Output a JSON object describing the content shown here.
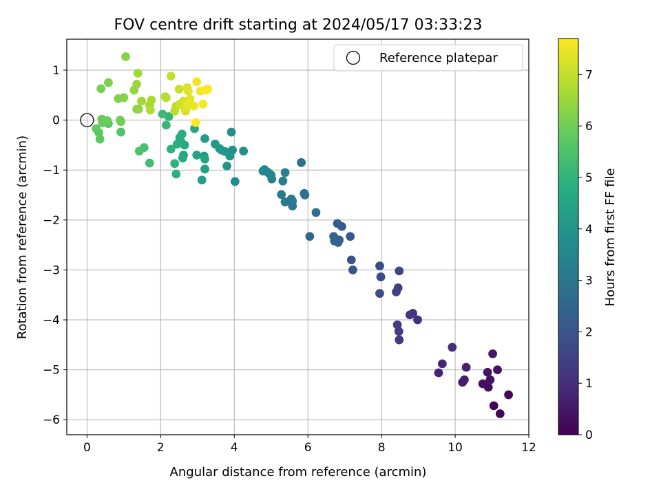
{
  "chart_data": {
    "type": "scatter",
    "title": "FOV centre drift starting at 2024/05/17 03:33:23",
    "xlabel": "Angular distance from reference (arcmin)",
    "ylabel": "Rotation from reference (arcmin)",
    "xlim": [
      -0.55,
      12.0
    ],
    "ylim": [
      -6.3,
      1.62
    ],
    "xticks": [
      0,
      2,
      4,
      6,
      8,
      10,
      12
    ],
    "yticks": [
      1,
      0,
      -1,
      -2,
      -3,
      -4,
      -5,
      -6
    ],
    "xtick_labels": [
      "0",
      "2",
      "4",
      "6",
      "8",
      "10",
      "12"
    ],
    "ytick_labels": [
      "1",
      "0",
      "−1",
      "−2",
      "−3",
      "−4",
      "−5",
      "−6"
    ],
    "grid": true,
    "legend": {
      "placement": "top-right",
      "label": "Reference platepar"
    },
    "reference_point": {
      "x": 0,
      "y": 0
    },
    "colorbar": {
      "label": "Hours from first FF file",
      "range": [
        0,
        7.7
      ],
      "ticks": [
        0,
        1,
        2,
        3,
        4,
        5,
        6,
        7
      ],
      "tick_labels": [
        "0",
        "1",
        "2",
        "3",
        "4",
        "5",
        "6",
        "7"
      ],
      "colormap": "viridis"
    },
    "points": [
      {
        "x": 11.05,
        "y": -5.72,
        "h": 0.05
      },
      {
        "x": 11.22,
        "y": -5.88,
        "h": 0.1
      },
      {
        "x": 11.45,
        "y": -5.5,
        "h": 0.15
      },
      {
        "x": 10.85,
        "y": -5.3,
        "h": 0.2
      },
      {
        "x": 10.9,
        "y": -5.35,
        "h": 0.25
      },
      {
        "x": 10.75,
        "y": -5.28,
        "h": 0.3
      },
      {
        "x": 10.95,
        "y": -5.2,
        "h": 0.35
      },
      {
        "x": 11.15,
        "y": -5.0,
        "h": 0.4
      },
      {
        "x": 10.88,
        "y": -5.05,
        "h": 0.45
      },
      {
        "x": 11.02,
        "y": -4.68,
        "h": 0.5
      },
      {
        "x": 10.2,
        "y": -5.25,
        "h": 0.55
      },
      {
        "x": 10.25,
        "y": -5.2,
        "h": 0.6
      },
      {
        "x": 10.3,
        "y": -4.95,
        "h": 0.65
      },
      {
        "x": 9.55,
        "y": -5.06,
        "h": 0.75
      },
      {
        "x": 9.65,
        "y": -4.88,
        "h": 0.85
      },
      {
        "x": 9.92,
        "y": -4.55,
        "h": 0.95
      },
      {
        "x": 8.98,
        "y": -4.0,
        "h": 1.1
      },
      {
        "x": 8.85,
        "y": -3.87,
        "h": 1.15
      },
      {
        "x": 8.77,
        "y": -3.9,
        "h": 1.2
      },
      {
        "x": 8.48,
        "y": -4.4,
        "h": 1.25
      },
      {
        "x": 8.47,
        "y": -4.23,
        "h": 1.3
      },
      {
        "x": 8.43,
        "y": -4.1,
        "h": 1.35
      },
      {
        "x": 8.45,
        "y": -3.36,
        "h": 1.45
      },
      {
        "x": 8.4,
        "y": -3.44,
        "h": 1.5
      },
      {
        "x": 8.48,
        "y": -3.02,
        "h": 1.6
      },
      {
        "x": 7.98,
        "y": -3.14,
        "h": 1.7
      },
      {
        "x": 7.95,
        "y": -2.92,
        "h": 1.75
      },
      {
        "x": 7.95,
        "y": -3.47,
        "h": 1.8
      },
      {
        "x": 7.22,
        "y": -3.0,
        "h": 1.95
      },
      {
        "x": 7.18,
        "y": -2.8,
        "h": 2.0
      },
      {
        "x": 7.15,
        "y": -2.33,
        "h": 2.1
      },
      {
        "x": 6.92,
        "y": -2.13,
        "h": 2.2
      },
      {
        "x": 6.8,
        "y": -2.07,
        "h": 2.25
      },
      {
        "x": 6.85,
        "y": -2.4,
        "h": 2.3
      },
      {
        "x": 6.75,
        "y": -2.38,
        "h": 2.35
      },
      {
        "x": 6.82,
        "y": -2.45,
        "h": 2.4
      },
      {
        "x": 6.7,
        "y": -2.33,
        "h": 2.45
      },
      {
        "x": 6.72,
        "y": -2.42,
        "h": 2.5
      },
      {
        "x": 6.05,
        "y": -2.33,
        "h": 2.6
      },
      {
        "x": 6.22,
        "y": -1.85,
        "h": 2.7
      },
      {
        "x": 5.9,
        "y": -1.47,
        "h": 2.8
      },
      {
        "x": 5.92,
        "y": -1.5,
        "h": 2.85
      },
      {
        "x": 5.82,
        "y": -0.85,
        "h": 2.9
      },
      {
        "x": 5.58,
        "y": -1.72,
        "h": 3.0
      },
      {
        "x": 5.55,
        "y": -1.58,
        "h": 3.05
      },
      {
        "x": 5.58,
        "y": -1.62,
        "h": 3.1
      },
      {
        "x": 5.38,
        "y": -1.64,
        "h": 3.15
      },
      {
        "x": 5.28,
        "y": -1.49,
        "h": 3.2
      },
      {
        "x": 5.32,
        "y": -1.22,
        "h": 3.25
      },
      {
        "x": 5.38,
        "y": -1.05,
        "h": 3.3
      },
      {
        "x": 5.02,
        "y": -1.18,
        "h": 3.35
      },
      {
        "x": 5.0,
        "y": -1.1,
        "h": 3.4
      },
      {
        "x": 4.95,
        "y": -1.07,
        "h": 3.45
      },
      {
        "x": 4.9,
        "y": -1.04,
        "h": 3.5
      },
      {
        "x": 4.78,
        "y": -1.02,
        "h": 3.55
      },
      {
        "x": 4.82,
        "y": -0.99,
        "h": 3.6
      },
      {
        "x": 4.02,
        "y": -1.23,
        "h": 3.7
      },
      {
        "x": 4.25,
        "y": -0.62,
        "h": 3.75
      },
      {
        "x": 3.92,
        "y": -0.24,
        "h": 3.8
      },
      {
        "x": 3.95,
        "y": -0.6,
        "h": 3.85
      },
      {
        "x": 3.88,
        "y": -0.72,
        "h": 3.9
      },
      {
        "x": 3.8,
        "y": -0.92,
        "h": 3.95
      },
      {
        "x": 3.75,
        "y": -0.63,
        "h": 4.0
      },
      {
        "x": 3.65,
        "y": -0.6,
        "h": 4.05
      },
      {
        "x": 3.6,
        "y": -0.57,
        "h": 4.1
      },
      {
        "x": 3.48,
        "y": -0.48,
        "h": 4.15
      },
      {
        "x": 3.2,
        "y": -0.37,
        "h": 4.2
      },
      {
        "x": 3.18,
        "y": -0.72,
        "h": 4.25
      },
      {
        "x": 3.2,
        "y": -0.98,
        "h": 4.3
      },
      {
        "x": 3.12,
        "y": -1.2,
        "h": 4.35
      },
      {
        "x": 2.98,
        "y": -0.7,
        "h": 4.4
      },
      {
        "x": 3.2,
        "y": -0.78,
        "h": 4.45
      },
      {
        "x": 2.92,
        "y": -0.17,
        "h": 4.5
      },
      {
        "x": 2.62,
        "y": -0.7,
        "h": 4.55
      },
      {
        "x": 2.65,
        "y": -0.5,
        "h": 4.6
      },
      {
        "x": 2.6,
        "y": -0.76,
        "h": 4.65
      },
      {
        "x": 2.55,
        "y": -0.43,
        "h": 4.7
      },
      {
        "x": 2.52,
        "y": -0.35,
        "h": 4.75
      },
      {
        "x": 2.58,
        "y": -0.28,
        "h": 4.8
      },
      {
        "x": 2.45,
        "y": -0.48,
        "h": 4.85
      },
      {
        "x": 2.42,
        "y": -1.08,
        "h": 4.9
      },
      {
        "x": 2.38,
        "y": -0.87,
        "h": 4.95
      },
      {
        "x": 2.28,
        "y": -0.58,
        "h": 5.0
      },
      {
        "x": 2.22,
        "y": 0.07,
        "h": 5.05
      },
      {
        "x": 2.15,
        "y": -0.1,
        "h": 5.1
      },
      {
        "x": 2.05,
        "y": 0.12,
        "h": 5.2
      },
      {
        "x": 1.7,
        "y": -0.86,
        "h": 5.3
      },
      {
        "x": 1.55,
        "y": -0.55,
        "h": 5.4
      },
      {
        "x": 1.42,
        "y": -0.62,
        "h": 5.5
      },
      {
        "x": 0.92,
        "y": -0.24,
        "h": 5.55
      },
      {
        "x": 0.58,
        "y": -0.07,
        "h": 5.65
      },
      {
        "x": 0.35,
        "y": -0.38,
        "h": 5.7
      },
      {
        "x": 0.32,
        "y": -0.25,
        "h": 5.75
      },
      {
        "x": 0.25,
        "y": -0.17,
        "h": 5.8
      },
      {
        "x": 0.42,
        "y": -0.05,
        "h": 5.85
      },
      {
        "x": 0.4,
        "y": 0.02,
        "h": 5.9
      },
      {
        "x": 0.55,
        "y": -0.01,
        "h": 5.95
      },
      {
        "x": 0.92,
        "y": -0.03,
        "h": 6.0
      },
      {
        "x": 0.9,
        "y": 0.0,
        "h": 6.05
      },
      {
        "x": 0.38,
        "y": 0.63,
        "h": 6.1
      },
      {
        "x": 0.58,
        "y": 0.75,
        "h": 6.15
      },
      {
        "x": 0.85,
        "y": 0.43,
        "h": 6.2
      },
      {
        "x": 1.0,
        "y": 0.45,
        "h": 6.25
      },
      {
        "x": 1.05,
        "y": 1.27,
        "h": 6.3
      },
      {
        "x": 1.4,
        "y": 0.22,
        "h": 6.35
      },
      {
        "x": 1.35,
        "y": 0.22,
        "h": 6.4
      },
      {
        "x": 1.28,
        "y": 0.6,
        "h": 6.45
      },
      {
        "x": 1.35,
        "y": 0.72,
        "h": 6.5
      },
      {
        "x": 1.38,
        "y": 0.94,
        "h": 6.55
      },
      {
        "x": 1.48,
        "y": 0.38,
        "h": 6.6
      },
      {
        "x": 1.7,
        "y": 0.3,
        "h": 6.65
      },
      {
        "x": 1.75,
        "y": 0.4,
        "h": 6.7
      },
      {
        "x": 1.72,
        "y": 0.2,
        "h": 6.75
      },
      {
        "x": 2.12,
        "y": 0.47,
        "h": 6.8
      },
      {
        "x": 2.15,
        "y": 0.45,
        "h": 6.85
      },
      {
        "x": 2.38,
        "y": 0.18,
        "h": 6.9
      },
      {
        "x": 2.42,
        "y": 0.28,
        "h": 6.95
      },
      {
        "x": 2.28,
        "y": 0.88,
        "h": 7.0
      },
      {
        "x": 2.5,
        "y": 0.62,
        "h": 7.05
      },
      {
        "x": 2.52,
        "y": 0.32,
        "h": 7.1
      },
      {
        "x": 2.62,
        "y": 0.38,
        "h": 7.15
      },
      {
        "x": 2.65,
        "y": 0.23,
        "h": 7.2
      },
      {
        "x": 2.68,
        "y": 0.18,
        "h": 7.25
      },
      {
        "x": 2.72,
        "y": 0.65,
        "h": 7.3
      },
      {
        "x": 2.75,
        "y": 0.58,
        "h": 7.35
      },
      {
        "x": 2.8,
        "y": 0.42,
        "h": 7.4
      },
      {
        "x": 2.72,
        "y": 0.3,
        "h": 7.45
      },
      {
        "x": 2.9,
        "y": 0.28,
        "h": 7.5
      },
      {
        "x": 2.98,
        "y": 0.77,
        "h": 7.55
      },
      {
        "x": 3.08,
        "y": 0.58,
        "h": 7.6
      },
      {
        "x": 3.15,
        "y": 0.32,
        "h": 7.62
      },
      {
        "x": 3.22,
        "y": 0.6,
        "h": 7.65
      },
      {
        "x": 3.28,
        "y": 0.62,
        "h": 7.68
      },
      {
        "x": 2.95,
        "y": -0.05,
        "h": 7.7
      }
    ]
  }
}
